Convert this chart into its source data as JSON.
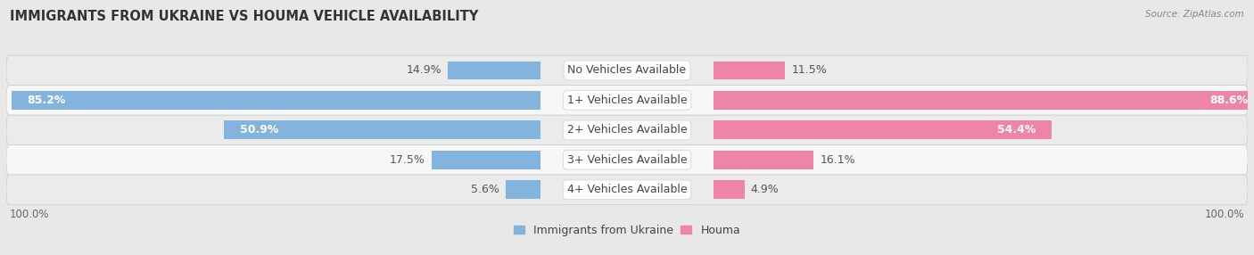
{
  "title": "IMMIGRANTS FROM UKRAINE VS HOUMA VEHICLE AVAILABILITY",
  "source": "Source: ZipAtlas.com",
  "categories": [
    "No Vehicles Available",
    "1+ Vehicles Available",
    "2+ Vehicles Available",
    "3+ Vehicles Available",
    "4+ Vehicles Available"
  ],
  "ukraine_values": [
    14.9,
    85.2,
    50.9,
    17.5,
    5.6
  ],
  "houma_values": [
    11.5,
    88.6,
    54.4,
    16.1,
    4.9
  ],
  "ukraine_color": "#82b4de",
  "houma_color": "#ee85a8",
  "row_colors": [
    "#ebebeb",
    "#f7f7f7"
  ],
  "background_color": "#e8e8e8",
  "bar_height": 0.62,
  "label_fontsize": 9.0,
  "title_fontsize": 10.5,
  "max_val": 100.0,
  "legend_ukraine": "Immigrants from Ukraine",
  "legend_houma": "Houma",
  "inside_label_threshold": 25.0
}
